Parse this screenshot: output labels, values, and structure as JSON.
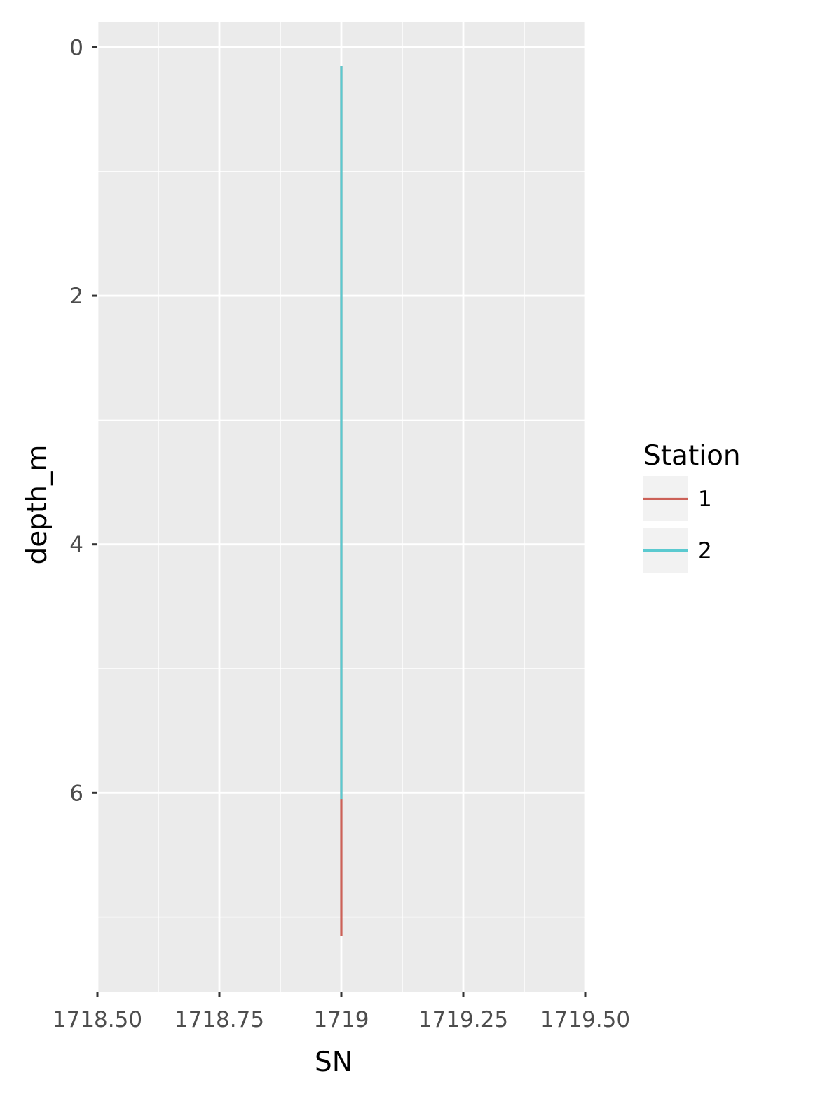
{
  "chart_data": {
    "type": "line",
    "title": "",
    "xlabel": "SN",
    "ylabel": "depth_m",
    "xlim": [
      1718.5,
      1719.5
    ],
    "ylim": [
      7.6,
      -0.2
    ],
    "y_reversed": true,
    "x_ticks": [
      {
        "value": 1718.5,
        "label": "1718.50"
      },
      {
        "value": 1718.75,
        "label": "1718.75"
      },
      {
        "value": 1719,
        "label": "1719"
      },
      {
        "value": 1719.25,
        "label": "1719.25"
      },
      {
        "value": 1719.5,
        "label": "1719.50"
      }
    ],
    "y_ticks": [
      {
        "value": 0,
        "label": "0"
      },
      {
        "value": 2,
        "label": "2"
      },
      {
        "value": 4,
        "label": "4"
      },
      {
        "value": 6,
        "label": "6"
      }
    ],
    "grid": true,
    "legend": {
      "title": "Station",
      "position": "right",
      "entries": [
        {
          "label": "1",
          "color": "#CC6158"
        },
        {
          "label": "2",
          "color": "#5BCAD0"
        }
      ]
    },
    "series": [
      {
        "name": "1",
        "color": "#CC6158",
        "points": [
          [
            1719,
            0.15
          ],
          [
            1719,
            6.0
          ],
          [
            1719,
            7.15
          ]
        ]
      },
      {
        "name": "2",
        "color": "#5BCAD0",
        "points": [
          [
            1719,
            0.15
          ],
          [
            1719,
            6.05
          ]
        ]
      }
    ]
  }
}
